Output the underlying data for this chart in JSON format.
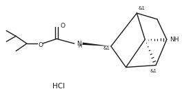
{
  "background": "#ffffff",
  "line_color": "#1a1a1a",
  "line_width": 1.0,
  "text_color": "#1a1a1a",
  "HCl_label": "HCl",
  "O_label": "O",
  "NH_top": "NH",
  "stereo1": "&1",
  "stereo2": "&1",
  "stereo3": "&1",
  "font_size_label": 6.5,
  "font_size_stereo": 5.0,
  "font_size_HCl": 7.5
}
